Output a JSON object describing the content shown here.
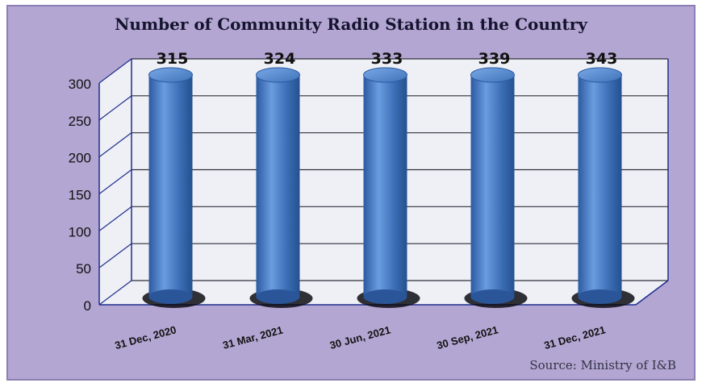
{
  "title": "Number of Community Radio Station in the Country",
  "source": "Source: Ministry of I&B",
  "colors": {
    "frame": "#b3a6d2",
    "plot_background": "#eef0f6",
    "bar": "#3f73ba",
    "axis_line": "#1f2d8c"
  },
  "chart_data": {
    "type": "bar",
    "title": "Number of Community Radio Station in the Country",
    "categories": [
      "31 Dec, 2020",
      "31 Mar, 2021",
      "30 Jun, 2021",
      "30 Sep, 2021",
      "31 Dec, 2021"
    ],
    "values": [
      315,
      324,
      333,
      339,
      343
    ],
    "data_labels": [
      "315",
      "324",
      "333",
      "339",
      "343"
    ],
    "y_ticks": [
      0,
      50,
      100,
      150,
      200,
      250,
      300
    ],
    "ylim": [
      0,
      300
    ],
    "grid": true,
    "style": "3d-cylinder",
    "xlabel": "",
    "ylabel": ""
  }
}
